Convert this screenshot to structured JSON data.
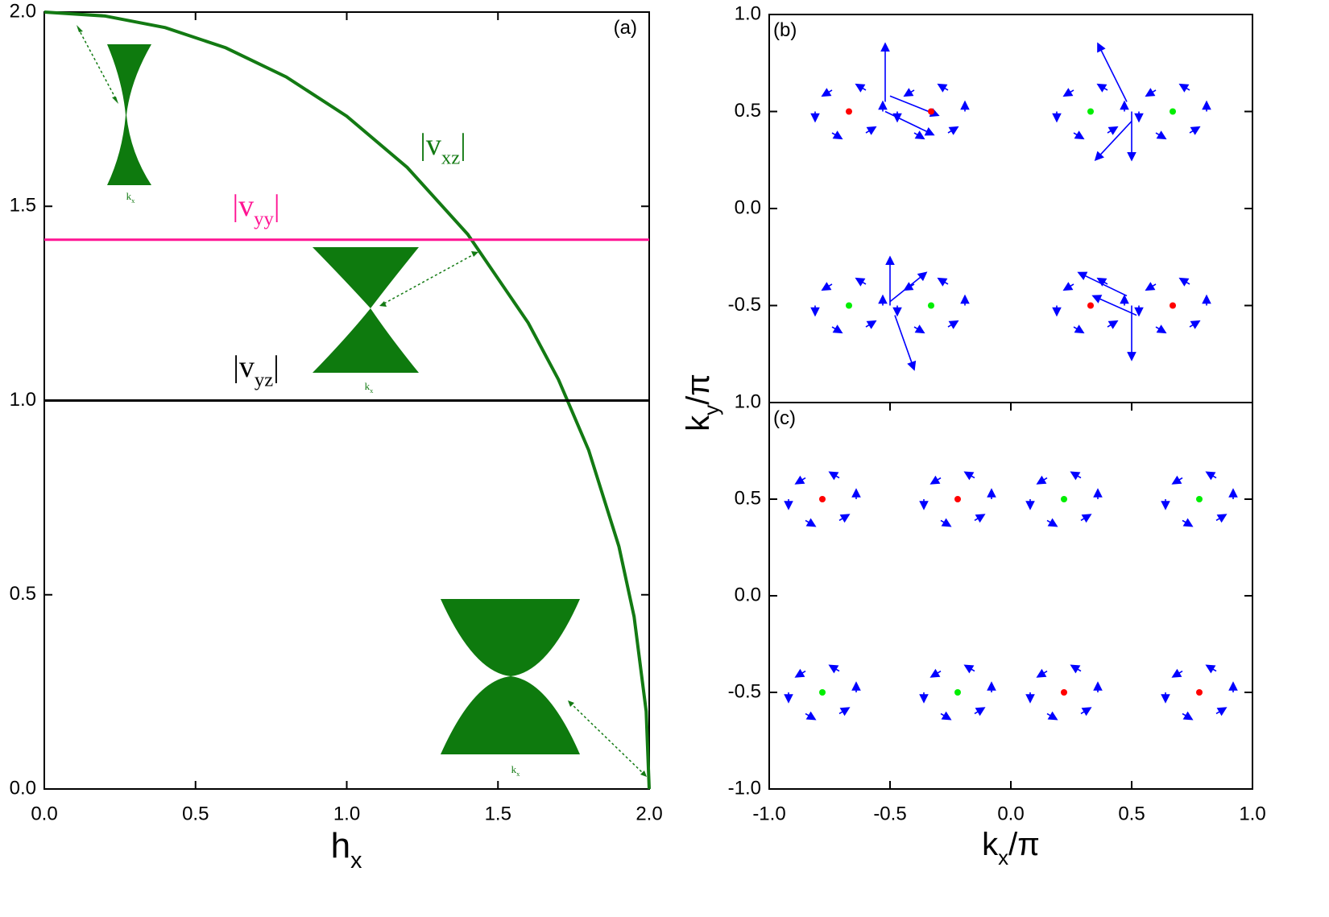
{
  "chart_data": [
    {
      "type": "line",
      "panel_label": "(a)",
      "xlabel": {
        "base": "h",
        "sub": "x"
      },
      "inset_label": {
        "base": "k",
        "sub": "x"
      },
      "xlim": [
        0,
        2
      ],
      "ylim": [
        0,
        2
      ],
      "xticks": [
        {
          "value": 0,
          "label": "0.0"
        },
        {
          "value": 0.5,
          "label": "0.5"
        },
        {
          "value": 1,
          "label": "1.0"
        },
        {
          "value": 1.5,
          "label": "1.5"
        },
        {
          "value": 2,
          "label": "2.0"
        }
      ],
      "yticks": [
        {
          "value": 0,
          "label": "0.0"
        },
        {
          "value": 0.5,
          "label": "0.5"
        },
        {
          "value": 1,
          "label": "1.0"
        },
        {
          "value": 1.5,
          "label": "1.5"
        },
        {
          "value": 2,
          "label": "2.0"
        }
      ],
      "series": [
        {
          "name": {
            "base": "|v",
            "sub": "xz",
            "tail": "|"
          },
          "color": "#137a13",
          "x": [
            0,
            0.2,
            0.4,
            0.6,
            0.8,
            1.0,
            1.2,
            1.4,
            1.6,
            1.7,
            1.8,
            1.9,
            1.95,
            1.99,
            2.0
          ],
          "values": [
            2,
            1.99,
            1.96,
            1.908,
            1.833,
            1.732,
            1.6,
            1.428,
            1.2,
            1.054,
            0.872,
            0.624,
            0.444,
            0.2,
            0
          ]
        },
        {
          "name": {
            "base": "|v",
            "sub": "yy",
            "tail": "|"
          },
          "color": "#ff1493",
          "x": [
            0,
            2
          ],
          "values": [
            1.414,
            1.414
          ]
        },
        {
          "name": {
            "base": "|v",
            "sub": "yz",
            "tail": "|"
          },
          "color": "#000000",
          "x": [
            0,
            2
          ],
          "values": [
            1,
            1
          ]
        }
      ]
    },
    {
      "type": "quiver",
      "panel_label": "(b)",
      "ylabel": {
        "base": "k",
        "sub": "y",
        "tail": "/π"
      },
      "xlim": [
        -1,
        1
      ],
      "ylim": [
        -1,
        1
      ],
      "yticks": [
        {
          "value": 1,
          "label": "1.0"
        },
        {
          "value": 0.5,
          "label": "0.5"
        },
        {
          "value": 0,
          "label": "0.0"
        },
        {
          "value": -0.5,
          "label": "-0.5"
        }
      ],
      "arrow_color": "#0000ff",
      "points": {
        "x": [
          -0.67,
          -0.33,
          0.33,
          0.67,
          -0.67,
          -0.33,
          0.33,
          0.67
        ],
        "y": [
          0.5,
          0.5,
          0.5,
          0.5,
          -0.5,
          -0.5,
          -0.5,
          -0.5
        ],
        "colors": [
          "#ff0000",
          "#ff0000",
          "#00ee00",
          "#00ee00",
          "#00ee00",
          "#00ee00",
          "#ff0000",
          "#ff0000"
        ]
      },
      "arrows": [
        [
          -0.53,
          0.5,
          0,
          0.05
        ],
        [
          -0.6,
          0.61,
          -0.04,
          0.03
        ],
        [
          -0.74,
          0.61,
          -0.04,
          -0.03
        ],
        [
          -0.81,
          0.5,
          0,
          -0.05
        ],
        [
          -0.74,
          0.39,
          0.04,
          -0.03
        ],
        [
          -0.6,
          0.39,
          0.04,
          0.03
        ],
        [
          -0.19,
          0.5,
          0,
          0.05
        ],
        [
          -0.26,
          0.61,
          -0.04,
          0.03
        ],
        [
          -0.4,
          0.61,
          -0.04,
          -0.03
        ],
        [
          -0.47,
          0.5,
          0,
          -0.05
        ],
        [
          -0.4,
          0.39,
          0.04,
          -0.03
        ],
        [
          -0.26,
          0.39,
          0.04,
          0.03
        ],
        [
          0.47,
          0.5,
          0,
          0.05
        ],
        [
          0.4,
          0.61,
          -0.04,
          0.03
        ],
        [
          0.26,
          0.61,
          -0.04,
          -0.03
        ],
        [
          0.19,
          0.5,
          0,
          -0.05
        ],
        [
          0.26,
          0.39,
          0.04,
          -0.03
        ],
        [
          0.4,
          0.39,
          0.04,
          0.03
        ],
        [
          0.81,
          0.5,
          0,
          0.05
        ],
        [
          0.74,
          0.61,
          -0.04,
          0.03
        ],
        [
          0.6,
          0.61,
          -0.04,
          -0.03
        ],
        [
          0.53,
          0.5,
          0,
          -0.05
        ],
        [
          0.6,
          0.39,
          0.04,
          -0.03
        ],
        [
          0.74,
          0.39,
          0.04,
          0.03
        ],
        [
          -0.53,
          -0.5,
          0,
          0.05
        ],
        [
          -0.6,
          -0.39,
          -0.04,
          0.03
        ],
        [
          -0.74,
          -0.39,
          -0.04,
          -0.03
        ],
        [
          -0.81,
          -0.5,
          0,
          -0.05
        ],
        [
          -0.74,
          -0.61,
          0.04,
          -0.03
        ],
        [
          -0.6,
          -0.61,
          0.04,
          0.03
        ],
        [
          -0.19,
          -0.5,
          0,
          0.05
        ],
        [
          -0.26,
          -0.39,
          -0.04,
          0.03
        ],
        [
          -0.4,
          -0.39,
          -0.04,
          -0.03
        ],
        [
          -0.47,
          -0.5,
          0,
          -0.05
        ],
        [
          -0.4,
          -0.61,
          0.04,
          -0.03
        ],
        [
          -0.26,
          -0.61,
          0.04,
          0.03
        ],
        [
          0.47,
          -0.5,
          0,
          0.05
        ],
        [
          0.4,
          -0.39,
          -0.04,
          0.03
        ],
        [
          0.26,
          -0.39,
          -0.04,
          -0.03
        ],
        [
          0.19,
          -0.5,
          0,
          -0.05
        ],
        [
          0.26,
          -0.61,
          0.04,
          -0.03
        ],
        [
          0.4,
          -0.61,
          0.04,
          0.03
        ],
        [
          0.81,
          -0.5,
          0,
          0.05
        ],
        [
          0.74,
          -0.39,
          -0.04,
          0.03
        ],
        [
          0.6,
          -0.39,
          -0.04,
          -0.03
        ],
        [
          0.53,
          -0.5,
          0,
          -0.05
        ],
        [
          0.6,
          -0.61,
          0.04,
          -0.03
        ],
        [
          0.74,
          -0.61,
          0.04,
          0.03
        ],
        [
          -0.52,
          0.55,
          0,
          0.3
        ],
        [
          -0.52,
          0.5,
          0.2,
          -0.12
        ],
        [
          -0.5,
          0.58,
          0.2,
          -0.1
        ],
        [
          0.5,
          0.5,
          0,
          -0.25
        ],
        [
          0.48,
          0.55,
          -0.12,
          0.3
        ],
        [
          0.5,
          0.45,
          -0.15,
          -0.2
        ],
        [
          -0.5,
          -0.5,
          0,
          0.25
        ],
        [
          -0.48,
          -0.55,
          0.08,
          -0.28
        ],
        [
          -0.5,
          -0.48,
          0.15,
          0.15
        ],
        [
          0.5,
          -0.5,
          0,
          -0.28
        ],
        [
          0.48,
          -0.45,
          -0.2,
          0.12
        ],
        [
          0.52,
          -0.55,
          -0.18,
          0.1
        ]
      ]
    },
    {
      "type": "quiver",
      "panel_label": "(c)",
      "xlabel": {
        "base": "k",
        "sub": "x",
        "tail": "/π"
      },
      "xlim": [
        -1,
        1
      ],
      "ylim": [
        -1,
        1
      ],
      "xticks": [
        {
          "value": -1,
          "label": "-1.0"
        },
        {
          "value": -0.5,
          "label": "-0.5"
        },
        {
          "value": 0,
          "label": "0.0"
        },
        {
          "value": 0.5,
          "label": "0.5"
        },
        {
          "value": 1,
          "label": "1.0"
        }
      ],
      "yticks": [
        {
          "value": 1,
          "label": "1.0"
        },
        {
          "value": 0.5,
          "label": "0.5"
        },
        {
          "value": 0,
          "label": "0.0"
        },
        {
          "value": -0.5,
          "label": "-0.5"
        },
        {
          "value": -1,
          "label": "-1.0"
        }
      ],
      "arrow_color": "#0000ff",
      "points": {
        "x": [
          -0.78,
          -0.22,
          0.22,
          0.78,
          -0.78,
          -0.22,
          0.22,
          0.78
        ],
        "y": [
          0.5,
          0.5,
          0.5,
          0.5,
          -0.5,
          -0.5,
          -0.5,
          -0.5
        ],
        "colors": [
          "#ff0000",
          "#ff0000",
          "#00ee00",
          "#00ee00",
          "#00ee00",
          "#00ee00",
          "#ff0000",
          "#ff0000"
        ]
      },
      "arrows": [
        [
          -0.64,
          0.5,
          0,
          0.05
        ],
        [
          -0.71,
          0.61,
          -0.04,
          0.03
        ],
        [
          -0.85,
          0.61,
          -0.04,
          -0.03
        ],
        [
          -0.92,
          0.5,
          0,
          -0.05
        ],
        [
          -0.85,
          0.39,
          0.04,
          -0.03
        ],
        [
          -0.71,
          0.39,
          0.04,
          0.03
        ],
        [
          -0.08,
          0.5,
          0,
          0.05
        ],
        [
          -0.15,
          0.61,
          -0.04,
          0.03
        ],
        [
          -0.29,
          0.61,
          -0.04,
          -0.03
        ],
        [
          -0.36,
          0.5,
          0,
          -0.05
        ],
        [
          -0.29,
          0.39,
          0.04,
          -0.03
        ],
        [
          -0.15,
          0.39,
          0.04,
          0.03
        ],
        [
          0.36,
          0.5,
          0,
          0.05
        ],
        [
          0.29,
          0.61,
          -0.04,
          0.03
        ],
        [
          0.15,
          0.61,
          -0.04,
          -0.03
        ],
        [
          0.08,
          0.5,
          0,
          -0.05
        ],
        [
          0.15,
          0.39,
          0.04,
          -0.03
        ],
        [
          0.29,
          0.39,
          0.04,
          0.03
        ],
        [
          0.92,
          0.5,
          0,
          0.05
        ],
        [
          0.85,
          0.61,
          -0.04,
          0.03
        ],
        [
          0.71,
          0.61,
          -0.04,
          -0.03
        ],
        [
          0.64,
          0.5,
          0,
          -0.05
        ],
        [
          0.71,
          0.39,
          0.04,
          -0.03
        ],
        [
          0.85,
          0.39,
          0.04,
          0.03
        ],
        [
          -0.64,
          -0.5,
          0,
          0.05
        ],
        [
          -0.71,
          -0.39,
          -0.04,
          0.03
        ],
        [
          -0.85,
          -0.39,
          -0.04,
          -0.03
        ],
        [
          -0.92,
          -0.5,
          0,
          -0.05
        ],
        [
          -0.85,
          -0.61,
          0.04,
          -0.03
        ],
        [
          -0.71,
          -0.61,
          0.04,
          0.03
        ],
        [
          -0.08,
          -0.5,
          0,
          0.05
        ],
        [
          -0.15,
          -0.39,
          -0.04,
          0.03
        ],
        [
          -0.29,
          -0.39,
          -0.04,
          -0.03
        ],
        [
          -0.36,
          -0.5,
          0,
          -0.05
        ],
        [
          -0.29,
          -0.61,
          0.04,
          -0.03
        ],
        [
          -0.15,
          -0.61,
          0.04,
          0.03
        ],
        [
          0.36,
          -0.5,
          0,
          0.05
        ],
        [
          0.29,
          -0.39,
          -0.04,
          0.03
        ],
        [
          0.15,
          -0.39,
          -0.04,
          -0.03
        ],
        [
          0.08,
          -0.5,
          0,
          -0.05
        ],
        [
          0.15,
          -0.61,
          0.04,
          -0.03
        ],
        [
          0.29,
          -0.61,
          0.04,
          0.03
        ],
        [
          0.92,
          -0.5,
          0,
          0.05
        ],
        [
          0.85,
          -0.39,
          -0.04,
          0.03
        ],
        [
          0.71,
          -0.39,
          -0.04,
          -0.03
        ],
        [
          0.64,
          -0.5,
          0,
          -0.05
        ],
        [
          0.71,
          -0.61,
          0.04,
          -0.03
        ],
        [
          0.85,
          -0.61,
          0.04,
          0.03
        ]
      ]
    }
  ]
}
